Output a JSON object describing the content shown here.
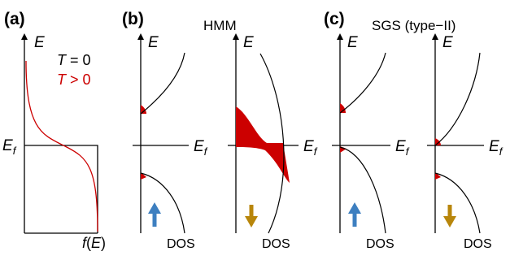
{
  "panels": {
    "a": {
      "label": "(a)",
      "y_axis": "E",
      "fermi_label": "E",
      "fermi_sub": "f",
      "x_label": "f(E)",
      "legend": {
        "t0": {
          "sym": "T",
          "rest": " = 0",
          "color": "#000000"
        },
        "tpos": {
          "sym": "T",
          "rest": " > 0",
          "color": "#cc0000"
        }
      }
    },
    "b": {
      "label": "(b)",
      "title": "HMM",
      "y_axis": "E",
      "fermi_label": "E",
      "fermi_sub": "f",
      "dos_label": "DOS"
    },
    "c": {
      "label": "(c)",
      "title": "SGS (type−II)",
      "y_axis": "E",
      "fermi_label": "E",
      "fermi_sub": "f",
      "dos_label": "DOS"
    }
  },
  "colors": {
    "occupied_fill": "#cc0000",
    "spin_up_arrow": "#3d7fc0",
    "spin_down_arrow": "#b8860b",
    "curve": "#000000"
  },
  "icons": [
    "spin-up-arrow-icon",
    "spin-down-arrow-icon"
  ]
}
